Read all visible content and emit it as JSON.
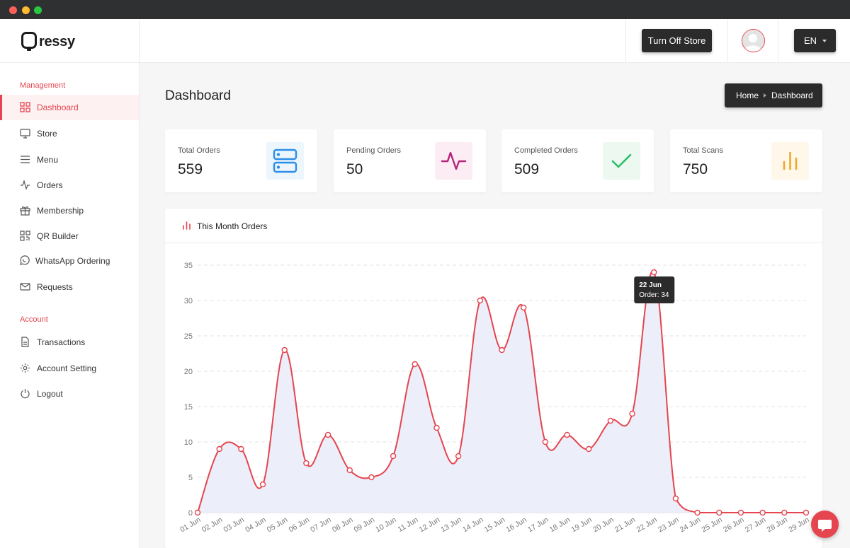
{
  "brand": {
    "name": "ressy"
  },
  "topbar": {
    "turn_off_label": "Turn Off Store",
    "language": "EN"
  },
  "sidebar": {
    "management_heading": "Management",
    "account_heading": "Account",
    "items": [
      {
        "label": "Dashboard",
        "icon": "grid-icon"
      },
      {
        "label": "Store",
        "icon": "monitor-icon"
      },
      {
        "label": "Menu",
        "icon": "menu-icon"
      },
      {
        "label": "Orders",
        "icon": "activity-icon"
      },
      {
        "label": "Membership",
        "icon": "gift-icon"
      },
      {
        "label": "QR Builder",
        "icon": "qr-icon"
      },
      {
        "label": "WhatsApp Ordering",
        "icon": "whatsapp-icon"
      },
      {
        "label": "Requests",
        "icon": "mail-icon"
      },
      {
        "label": "Transactions",
        "icon": "file-icon"
      },
      {
        "label": "Account Setting",
        "icon": "gear-icon"
      },
      {
        "label": "Logout",
        "icon": "power-icon"
      }
    ]
  },
  "page": {
    "title": "Dashboard"
  },
  "breadcrumb": {
    "home": "Home",
    "current": "Dashboard"
  },
  "stats": [
    {
      "label": "Total Orders",
      "value": "559",
      "icon": "server-icon",
      "color": "#2b8fe8",
      "bg": "#edf5fd"
    },
    {
      "label": "Pending Orders",
      "value": "50",
      "icon": "activity-icon",
      "color": "#b8237c",
      "bg": "#fbedf3"
    },
    {
      "label": "Completed Orders",
      "value": "509",
      "icon": "check-icon",
      "color": "#2bbf6a",
      "bg": "#ecf8f0"
    },
    {
      "label": "Total Scans",
      "value": "750",
      "icon": "bar-chart-icon",
      "color": "#f0a92a",
      "bg": "#fef7ea"
    }
  ],
  "chart_card": {
    "title": "This Month Orders"
  },
  "colors": {
    "accent": "#e5454f",
    "area_fill": "#eceefa",
    "dark": "#2b2b2c"
  },
  "chart_data": {
    "type": "area",
    "x": [
      "01 Jun",
      "02 Jun",
      "03 Jun",
      "04 Jun",
      "05 Jun",
      "06 Jun",
      "07 Jun",
      "08 Jun",
      "09 Jun",
      "10 Jun",
      "11 Jun",
      "12 Jun",
      "13 Jun",
      "14 Jun",
      "15 Jun",
      "16 Jun",
      "17 Jun",
      "18 Jun",
      "19 Jun",
      "20 Jun",
      "21 Jun",
      "22 Jun",
      "23 Jun",
      "24 Jun",
      "25 Jun",
      "26 Jun",
      "27 Jun",
      "28 Jun",
      "29 Jun"
    ],
    "series": [
      {
        "name": "Order",
        "values": [
          0,
          9,
          9,
          4,
          23,
          7,
          11,
          6,
          5,
          8,
          21,
          12,
          8,
          30,
          23,
          29,
          10,
          11,
          9,
          13,
          14,
          34,
          2,
          0,
          0,
          0,
          0,
          0,
          0
        ]
      }
    ],
    "ylim": [
      0,
      35
    ],
    "yticks": [
      0,
      5,
      10,
      15,
      20,
      25,
      30,
      35
    ],
    "grid": true,
    "tooltip": {
      "title": "22 Jun",
      "text": "Order: 34"
    }
  }
}
